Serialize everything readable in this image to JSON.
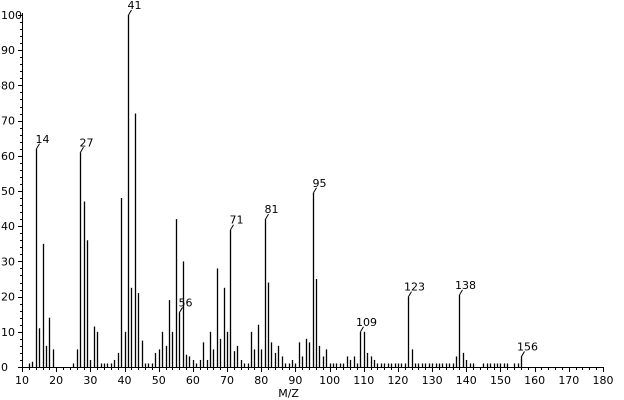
{
  "chart_data": {
    "type": "bar",
    "xlabel": "M/Z",
    "ylabel": "",
    "xlim": [
      10,
      180
    ],
    "ylim": [
      0,
      100
    ],
    "grid": false,
    "x_ticks": [
      10,
      20,
      30,
      40,
      50,
      60,
      70,
      80,
      90,
      100,
      110,
      120,
      130,
      140,
      150,
      160,
      170,
      180
    ],
    "y_ticks": [
      0,
      10,
      20,
      30,
      40,
      50,
      60,
      70,
      80,
      90,
      100
    ],
    "peaks": [
      {
        "x": 12,
        "y": 1
      },
      {
        "x": 13,
        "y": 1.5
      },
      {
        "x": 14,
        "y": 62
      },
      {
        "x": 15,
        "y": 11
      },
      {
        "x": 16,
        "y": 35
      },
      {
        "x": 17,
        "y": 6
      },
      {
        "x": 18,
        "y": 14
      },
      {
        "x": 19,
        "y": 5
      },
      {
        "x": 25,
        "y": 1
      },
      {
        "x": 26,
        "y": 5
      },
      {
        "x": 27,
        "y": 61
      },
      {
        "x": 28,
        "y": 47
      },
      {
        "x": 29,
        "y": 36
      },
      {
        "x": 30,
        "y": 2
      },
      {
        "x": 31,
        "y": 11.5
      },
      {
        "x": 32,
        "y": 10
      },
      {
        "x": 33,
        "y": 1
      },
      {
        "x": 34,
        "y": 1
      },
      {
        "x": 35,
        "y": 1
      },
      {
        "x": 36,
        "y": 1
      },
      {
        "x": 37,
        "y": 2
      },
      {
        "x": 38,
        "y": 4
      },
      {
        "x": 39,
        "y": 48
      },
      {
        "x": 40,
        "y": 10
      },
      {
        "x": 41,
        "y": 100
      },
      {
        "x": 42,
        "y": 22.5
      },
      {
        "x": 43,
        "y": 72
      },
      {
        "x": 44,
        "y": 21
      },
      {
        "x": 45,
        "y": 7.5
      },
      {
        "x": 46,
        "y": 1
      },
      {
        "x": 47,
        "y": 1
      },
      {
        "x": 48,
        "y": 1
      },
      {
        "x": 49,
        "y": 4
      },
      {
        "x": 50,
        "y": 5
      },
      {
        "x": 51,
        "y": 10
      },
      {
        "x": 52,
        "y": 6
      },
      {
        "x": 53,
        "y": 19
      },
      {
        "x": 54,
        "y": 10
      },
      {
        "x": 55,
        "y": 42
      },
      {
        "x": 56,
        "y": 15.5
      },
      {
        "x": 57,
        "y": 30
      },
      {
        "x": 58,
        "y": 3.5
      },
      {
        "x": 59,
        "y": 3
      },
      {
        "x": 60,
        "y": 2
      },
      {
        "x": 61,
        "y": 1
      },
      {
        "x": 62,
        "y": 2
      },
      {
        "x": 63,
        "y": 7
      },
      {
        "x": 64,
        "y": 2
      },
      {
        "x": 65,
        "y": 10
      },
      {
        "x": 66,
        "y": 5
      },
      {
        "x": 67,
        "y": 28
      },
      {
        "x": 68,
        "y": 8
      },
      {
        "x": 69,
        "y": 22.5
      },
      {
        "x": 70,
        "y": 10
      },
      {
        "x": 71,
        "y": 39
      },
      {
        "x": 72,
        "y": 4.5
      },
      {
        "x": 73,
        "y": 6
      },
      {
        "x": 74,
        "y": 2
      },
      {
        "x": 75,
        "y": 1
      },
      {
        "x": 76,
        "y": 1
      },
      {
        "x": 77,
        "y": 10
      },
      {
        "x": 78,
        "y": 5
      },
      {
        "x": 79,
        "y": 12
      },
      {
        "x": 80,
        "y": 5
      },
      {
        "x": 81,
        "y": 42
      },
      {
        "x": 82,
        "y": 24
      },
      {
        "x": 83,
        "y": 7
      },
      {
        "x": 84,
        "y": 4
      },
      {
        "x": 85,
        "y": 6
      },
      {
        "x": 86,
        "y": 3
      },
      {
        "x": 87,
        "y": 1
      },
      {
        "x": 88,
        "y": 1
      },
      {
        "x": 89,
        "y": 2
      },
      {
        "x": 90,
        "y": 1
      },
      {
        "x": 91,
        "y": 7
      },
      {
        "x": 92,
        "y": 3
      },
      {
        "x": 93,
        "y": 8
      },
      {
        "x": 94,
        "y": 7
      },
      {
        "x": 95,
        "y": 49.5
      },
      {
        "x": 96,
        "y": 25
      },
      {
        "x": 97,
        "y": 6
      },
      {
        "x": 98,
        "y": 3
      },
      {
        "x": 99,
        "y": 5
      },
      {
        "x": 100,
        "y": 1
      },
      {
        "x": 101,
        "y": 1
      },
      {
        "x": 102,
        "y": 1
      },
      {
        "x": 103,
        "y": 1
      },
      {
        "x": 104,
        "y": 1
      },
      {
        "x": 105,
        "y": 3
      },
      {
        "x": 106,
        "y": 2
      },
      {
        "x": 107,
        "y": 3
      },
      {
        "x": 108,
        "y": 1
      },
      {
        "x": 109,
        "y": 10
      },
      {
        "x": 110,
        "y": 10
      },
      {
        "x": 111,
        "y": 4
      },
      {
        "x": 112,
        "y": 3
      },
      {
        "x": 113,
        "y": 2
      },
      {
        "x": 114,
        "y": 1
      },
      {
        "x": 115,
        "y": 1
      },
      {
        "x": 116,
        "y": 1
      },
      {
        "x": 117,
        "y": 1
      },
      {
        "x": 118,
        "y": 1
      },
      {
        "x": 119,
        "y": 1
      },
      {
        "x": 120,
        "y": 1
      },
      {
        "x": 121,
        "y": 1
      },
      {
        "x": 122,
        "y": 1
      },
      {
        "x": 123,
        "y": 20
      },
      {
        "x": 124,
        "y": 5
      },
      {
        "x": 125,
        "y": 1
      },
      {
        "x": 126,
        "y": 1
      },
      {
        "x": 127,
        "y": 1
      },
      {
        "x": 128,
        "y": 1
      },
      {
        "x": 129,
        "y": 1
      },
      {
        "x": 130,
        "y": 1
      },
      {
        "x": 131,
        "y": 1
      },
      {
        "x": 132,
        "y": 1
      },
      {
        "x": 133,
        "y": 1
      },
      {
        "x": 134,
        "y": 1
      },
      {
        "x": 135,
        "y": 1
      },
      {
        "x": 136,
        "y": 1
      },
      {
        "x": 137,
        "y": 3
      },
      {
        "x": 138,
        "y": 20.5
      },
      {
        "x": 139,
        "y": 4
      },
      {
        "x": 140,
        "y": 2
      },
      {
        "x": 141,
        "y": 1
      },
      {
        "x": 142,
        "y": 1
      },
      {
        "x": 145,
        "y": 1
      },
      {
        "x": 146,
        "y": 1
      },
      {
        "x": 147,
        "y": 1
      },
      {
        "x": 148,
        "y": 1
      },
      {
        "x": 149,
        "y": 1
      },
      {
        "x": 150,
        "y": 1
      },
      {
        "x": 151,
        "y": 1
      },
      {
        "x": 152,
        "y": 1
      },
      {
        "x": 154,
        "y": 1
      },
      {
        "x": 155,
        "y": 1
      },
      {
        "x": 156,
        "y": 3
      }
    ],
    "labeled_peaks": [
      {
        "x": 14,
        "label": "14"
      },
      {
        "x": 27,
        "label": "27"
      },
      {
        "x": 41,
        "label": "41"
      },
      {
        "x": 56,
        "label": "56"
      },
      {
        "x": 71,
        "label": "71"
      },
      {
        "x": 81,
        "label": "81"
      },
      {
        "x": 95,
        "label": "95"
      },
      {
        "x": 109,
        "label": "109"
      },
      {
        "x": 123,
        "label": "123"
      },
      {
        "x": 138,
        "label": "138"
      },
      {
        "x": 156,
        "label": "156"
      }
    ],
    "colors": {
      "axis": "#000000",
      "bars": "#000000",
      "background": "#ffffff"
    }
  }
}
